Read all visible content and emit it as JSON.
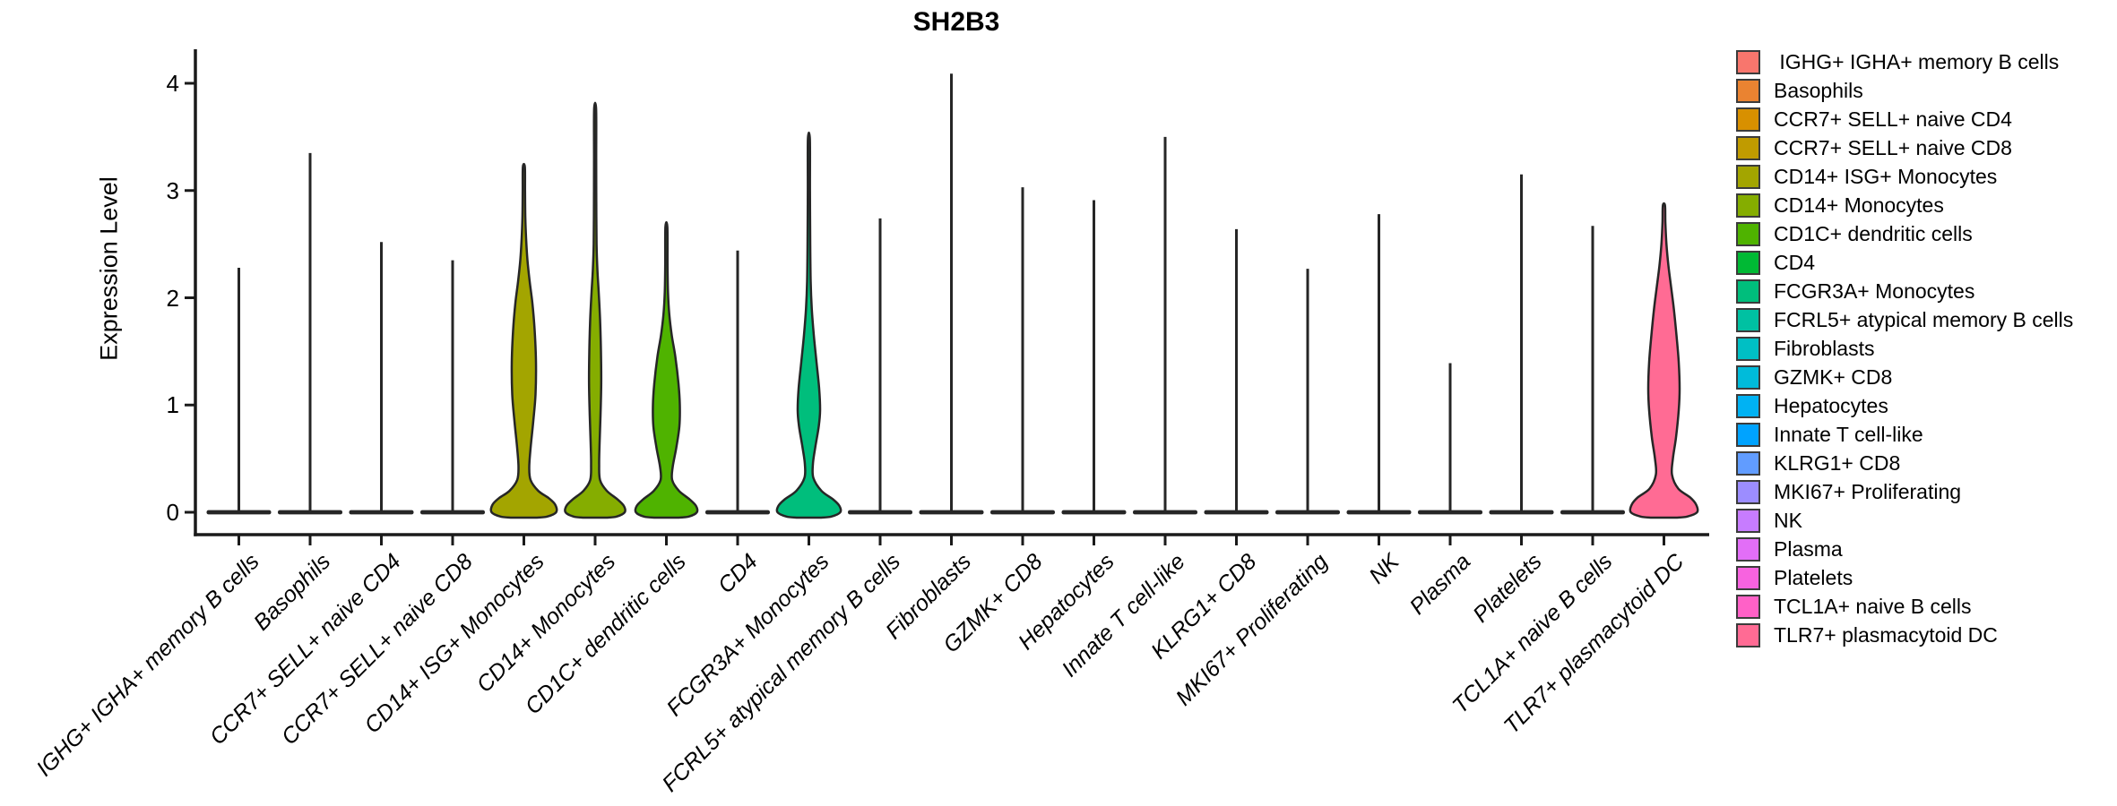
{
  "title": "SH2B3",
  "y_axis": {
    "label": "Expression Level"
  },
  "legend": {
    "entries": [
      {
        "label": " IGHG+ IGHA+ memory B cells",
        "color": "#F8766D"
      },
      {
        "label": "Basophils",
        "color": "#EA8331"
      },
      {
        "label": "CCR7+ SELL+ naive CD4",
        "color": "#D89000"
      },
      {
        "label": "CCR7+ SELL+ naive CD8",
        "color": "#C09B00"
      },
      {
        "label": "CD14+ ISG+ Monocytes",
        "color": "#A3A500"
      },
      {
        "label": "CD14+ Monocytes",
        "color": "#85AD00"
      },
      {
        "label": "CD1C+ dendritic cells",
        "color": "#4FB300"
      },
      {
        "label": "CD4",
        "color": "#00B934"
      },
      {
        "label": "FCGR3A+ Monocytes",
        "color": "#00BE7C"
      },
      {
        "label": "FCRL5+ atypical memory B cells",
        "color": "#00C1A2"
      },
      {
        "label": "Fibroblasts",
        "color": "#00BFC4"
      },
      {
        "label": "GZMK+ CD8",
        "color": "#00BBDA"
      },
      {
        "label": "Hepatocytes",
        "color": "#00B2F3"
      },
      {
        "label": "Innate T cell-like",
        "color": "#00A3FF"
      },
      {
        "label": "KLRG1+ CD8",
        "color": "#619CFF"
      },
      {
        "label": "MKI67+ Proliferating",
        "color": "#9C8DFF"
      },
      {
        "label": "NK",
        "color": "#C77CFF"
      },
      {
        "label": "Plasma",
        "color": "#E26EF7"
      },
      {
        "label": "Platelets",
        "color": "#F763DF"
      },
      {
        "label": "TCL1A+ naive B cells",
        "color": "#FF61C7"
      },
      {
        "label": "TLR7+ plasmacytoid DC",
        "color": "#FF6B94"
      }
    ]
  },
  "chart_data": {
    "type": "violin",
    "title": "SH2B3",
    "xlabel": "",
    "ylabel": "Expression Level",
    "ylim": [
      -0.2,
      4.3
    ],
    "yticks": [
      0,
      1,
      2,
      3,
      4
    ],
    "grid": false,
    "legend_position": "right",
    "categories": [
      "IGHG+ IGHA+ memory B cells",
      "Basophils",
      "CCR7+ SELL+ naive CD4",
      "CCR7+ SELL+ naive CD8",
      "CD14+ ISG+ Monocytes",
      "CD14+ Monocytes",
      "CD1C+ dendritic cells",
      "CD4",
      "FCGR3A+ Monocytes",
      "FCRL5+ atypical memory B cells",
      "Fibroblasts",
      "GZMK+ CD8",
      "Hepatocytes",
      "Innate T cell-like",
      "KLRG1+ CD8",
      "MKI67+ Proliferating",
      "NK",
      "Plasma",
      "Platelets",
      "TCL1A+ naive B cells",
      "TLR7+ plasmacytoid DC"
    ],
    "series": [
      {
        "name": "IGHG+ IGHA+ memory B cells",
        "color": "#F8766D",
        "max_expression": 2.28,
        "profile": null
      },
      {
        "name": "Basophils",
        "color": "#EA8331",
        "max_expression": 3.35,
        "profile": null
      },
      {
        "name": "CCR7+ SELL+ naive CD4",
        "color": "#D89000",
        "max_expression": 2.52,
        "profile": null
      },
      {
        "name": "CCR7+ SELL+ naive CD8",
        "color": "#C09B00",
        "max_expression": 2.35,
        "profile": null
      },
      {
        "name": "CD14+ ISG+ Monocytes",
        "color": "#A3A500",
        "max_expression": 3.22,
        "profile": [
          [
            -0.05,
            14
          ],
          [
            -0.04,
            26
          ],
          [
            0,
            36
          ],
          [
            0.07,
            35
          ],
          [
            0.13,
            28
          ],
          [
            0.2,
            16
          ],
          [
            0.3,
            7.5
          ],
          [
            0.42,
            6
          ],
          [
            0.6,
            7.5
          ],
          [
            0.85,
            10.5
          ],
          [
            1.1,
            13
          ],
          [
            1.4,
            13.5
          ],
          [
            1.7,
            12
          ],
          [
            1.95,
            9.5
          ],
          [
            2.15,
            6.5
          ],
          [
            2.35,
            4
          ],
          [
            2.55,
            2.5
          ],
          [
            2.75,
            1.6
          ],
          [
            3.0,
            1.3
          ],
          [
            3.22,
            1.1
          ]
        ]
      },
      {
        "name": "CD14+ Monocytes",
        "color": "#85AD00",
        "max_expression": 3.76,
        "profile": [
          [
            -0.05,
            13
          ],
          [
            -0.04,
            24
          ],
          [
            0,
            33
          ],
          [
            0.06,
            32
          ],
          [
            0.12,
            25
          ],
          [
            0.2,
            13
          ],
          [
            0.3,
            5.5
          ],
          [
            0.45,
            4.5
          ],
          [
            0.65,
            5
          ],
          [
            0.9,
            6
          ],
          [
            1.2,
            6.8
          ],
          [
            1.5,
            6.5
          ],
          [
            1.8,
            5.5
          ],
          [
            2.05,
            4
          ],
          [
            2.25,
            2.6
          ],
          [
            2.5,
            1.6
          ],
          [
            2.9,
            1.3
          ],
          [
            3.3,
            1.2
          ],
          [
            3.76,
            1.1
          ]
        ]
      },
      {
        "name": "CD1C+ dendritic cells",
        "color": "#4FB300",
        "max_expression": 2.66,
        "profile": [
          [
            -0.05,
            13
          ],
          [
            -0.04,
            25
          ],
          [
            0,
            34
          ],
          [
            0.06,
            33
          ],
          [
            0.12,
            26
          ],
          [
            0.2,
            14
          ],
          [
            0.3,
            6.5
          ],
          [
            0.42,
            7
          ],
          [
            0.6,
            11
          ],
          [
            0.8,
            14.5
          ],
          [
            1.0,
            15
          ],
          [
            1.2,
            13.5
          ],
          [
            1.45,
            10
          ],
          [
            1.65,
            6
          ],
          [
            1.85,
            3.2
          ],
          [
            2.05,
            1.8
          ],
          [
            2.3,
            1.3
          ],
          [
            2.66,
            1.1
          ]
        ]
      },
      {
        "name": "CD4",
        "color": "#00B934",
        "max_expression": 2.44,
        "profile": null
      },
      {
        "name": "FCGR3A+ Monocytes",
        "color": "#00BE7C",
        "max_expression": 3.48,
        "profile": [
          [
            -0.05,
            13
          ],
          [
            -0.04,
            25
          ],
          [
            0,
            35
          ],
          [
            0.06,
            34
          ],
          [
            0.12,
            27
          ],
          [
            0.2,
            14
          ],
          [
            0.32,
            5
          ],
          [
            0.45,
            4.5
          ],
          [
            0.6,
            7
          ],
          [
            0.8,
            11
          ],
          [
            0.95,
            12.5
          ],
          [
            1.15,
            11.5
          ],
          [
            1.4,
            8.5
          ],
          [
            1.65,
            5.5
          ],
          [
            1.9,
            3.2
          ],
          [
            2.15,
            2
          ],
          [
            2.5,
            1.5
          ],
          [
            3.0,
            1.2
          ],
          [
            3.48,
            1.1
          ]
        ]
      },
      {
        "name": "FCRL5+ atypical memory B cells",
        "color": "#00C1A2",
        "max_expression": 2.74,
        "profile": null
      },
      {
        "name": "Fibroblasts",
        "color": "#00BFC4",
        "max_expression": 4.09,
        "profile": null
      },
      {
        "name": "GZMK+ CD8",
        "color": "#00BBDA",
        "max_expression": 3.03,
        "profile": null
      },
      {
        "name": "Hepatocytes",
        "color": "#00B2F3",
        "max_expression": 2.91,
        "profile": null
      },
      {
        "name": "Innate T cell-like",
        "color": "#00A3FF",
        "max_expression": 3.5,
        "profile": null
      },
      {
        "name": "KLRG1+ CD8",
        "color": "#619CFF",
        "max_expression": 2.64,
        "profile": null
      },
      {
        "name": "MKI67+ Proliferating",
        "color": "#9C8DFF",
        "max_expression": 2.27,
        "profile": null
      },
      {
        "name": "NK",
        "color": "#C77CFF",
        "max_expression": 2.78,
        "profile": null
      },
      {
        "name": "Plasma",
        "color": "#E26EF7",
        "max_expression": 1.39,
        "profile": null
      },
      {
        "name": "Platelets",
        "color": "#F763DF",
        "max_expression": 3.15,
        "profile": null
      },
      {
        "name": "TCL1A+ naive B cells",
        "color": "#FF61C7",
        "max_expression": 2.67,
        "profile": null
      },
      {
        "name": "TLR7+ plasmacytoid DC",
        "color": "#FF6B94",
        "max_expression": 2.86,
        "profile": [
          [
            -0.05,
            14
          ],
          [
            -0.04,
            26
          ],
          [
            0,
            37
          ],
          [
            0.07,
            36
          ],
          [
            0.14,
            29
          ],
          [
            0.22,
            16
          ],
          [
            0.35,
            9
          ],
          [
            0.5,
            10
          ],
          [
            0.7,
            13.5
          ],
          [
            0.95,
            16.5
          ],
          [
            1.15,
            17.5
          ],
          [
            1.4,
            16.5
          ],
          [
            1.65,
            14
          ],
          [
            1.9,
            11
          ],
          [
            2.1,
            8
          ],
          [
            2.3,
            5
          ],
          [
            2.5,
            2.8
          ],
          [
            2.7,
            1.6
          ],
          [
            2.86,
            1.2
          ]
        ]
      }
    ]
  }
}
